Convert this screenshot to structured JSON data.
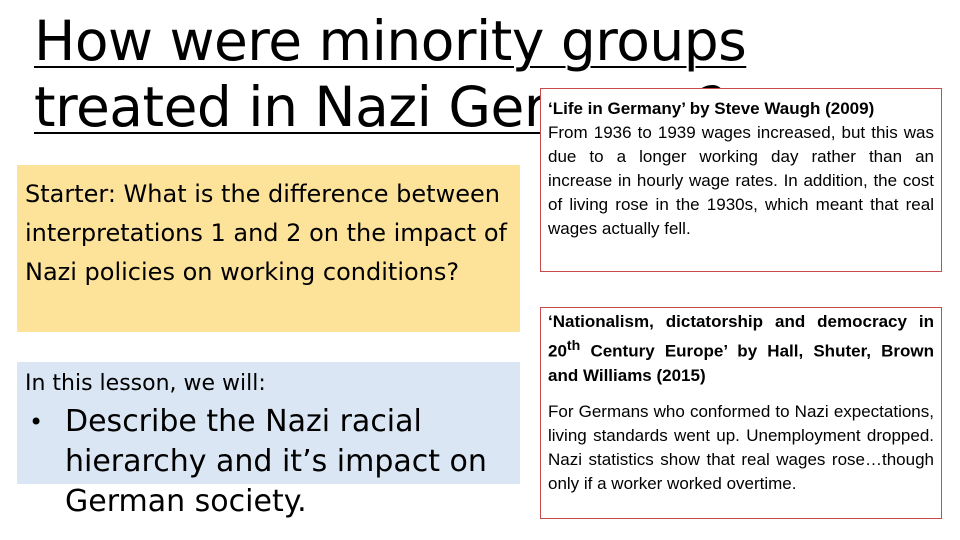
{
  "title": "How were minority groups treated in Nazi Germany?",
  "starter": "Starter: What is the difference between interpretations 1 and 2 on the impact of Nazi policies on working conditions?",
  "lesson": {
    "intro": "In this lesson, we will:",
    "bullet": "•",
    "objective": "Describe the Nazi racial hierarchy and it’s impact on German society."
  },
  "interpretation1": {
    "source": "‘Life in Germany’ by Steve Waugh (2009)",
    "text": "From 1936 to 1939 wages increased, but this was due to a longer working day rather than an increase in hourly wage rates. In addition, the cost of living rose in the 1930s, which meant that real wages actually fell."
  },
  "interpretation2": {
    "source_before": "‘Nationalism, dictatorship and democracy in 20",
    "source_sup": "th",
    "source_after": " Century Europe’ by Hall, Shuter, Brown and Williams (2015)",
    "text": "For Germans who conformed to Nazi expectations, living standards went up. Unemployment dropped. Nazi statistics show that real wages rose…though only if a worker worked overtime."
  }
}
